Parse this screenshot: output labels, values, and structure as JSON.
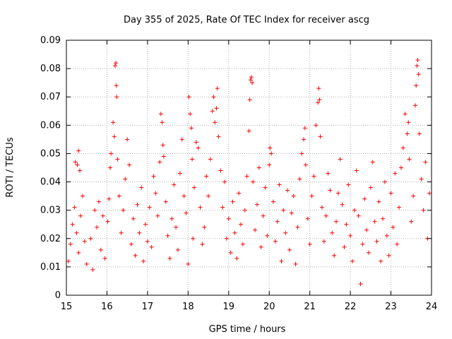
{
  "chart_data": {
    "type": "scatter",
    "title": "Day 355 of 2025, Rate Of TEC Index for receiver ascg",
    "xlabel": "GPS time / hours",
    "ylabel": "ROTI / TECUs",
    "xlim": [
      15,
      24
    ],
    "ylim": [
      0,
      0.09
    ],
    "x_ticks": [
      15,
      16,
      17,
      18,
      19,
      20,
      21,
      22,
      23,
      24
    ],
    "x_tick_labels": [
      "15",
      "16",
      "17",
      "18",
      "19",
      "20",
      "21",
      "22",
      "23",
      "24"
    ],
    "y_ticks": [
      0,
      0.01,
      0.02,
      0.03,
      0.04,
      0.05,
      0.06,
      0.07,
      0.08,
      0.09
    ],
    "y_tick_labels": [
      "0",
      "0.01",
      "0.02",
      "0.03",
      "0.04",
      "0.05",
      "0.06",
      "0.07",
      "0.08",
      "0.09"
    ],
    "grid": true,
    "marker": "+",
    "series_color": "#ff0000",
    "series": [
      {
        "name": "ROTI",
        "points": [
          [
            15.05,
            0.012
          ],
          [
            15.1,
            0.018
          ],
          [
            15.15,
            0.025
          ],
          [
            15.2,
            0.031
          ],
          [
            15.25,
            0.022
          ],
          [
            15.3,
            0.015
          ],
          [
            15.35,
            0.028
          ],
          [
            15.4,
            0.035
          ],
          [
            15.45,
            0.019
          ],
          [
            15.5,
            0.011
          ],
          [
            15.22,
            0.047
          ],
          [
            15.27,
            0.046
          ],
          [
            15.3,
            0.051
          ],
          [
            15.33,
            0.044
          ],
          [
            15.6,
            0.02
          ],
          [
            15.65,
            0.009
          ],
          [
            15.7,
            0.03
          ],
          [
            15.75,
            0.024
          ],
          [
            15.8,
            0.033
          ],
          [
            15.85,
            0.016
          ],
          [
            15.9,
            0.028
          ],
          [
            15.95,
            0.013
          ],
          [
            16.02,
            0.026
          ],
          [
            16.05,
            0.034
          ],
          [
            16.08,
            0.045
          ],
          [
            16.1,
            0.05
          ],
          [
            16.15,
            0.061
          ],
          [
            16.18,
            0.056
          ],
          [
            16.2,
            0.081
          ],
          [
            16.22,
            0.082
          ],
          [
            16.23,
            0.074
          ],
          [
            16.24,
            0.07
          ],
          [
            16.26,
            0.048
          ],
          [
            16.3,
            0.035
          ],
          [
            16.35,
            0.022
          ],
          [
            16.4,
            0.03
          ],
          [
            16.45,
            0.041
          ],
          [
            16.5,
            0.055
          ],
          [
            16.55,
            0.046
          ],
          [
            16.6,
            0.018
          ],
          [
            16.65,
            0.027
          ],
          [
            16.7,
            0.014
          ],
          [
            16.75,
            0.032
          ],
          [
            16.8,
            0.022
          ],
          [
            16.85,
            0.038
          ],
          [
            16.9,
            0.012
          ],
          [
            16.95,
            0.025
          ],
          [
            17.0,
            0.019
          ],
          [
            17.05,
            0.031
          ],
          [
            17.1,
            0.017
          ],
          [
            17.15,
            0.042
          ],
          [
            17.2,
            0.036
          ],
          [
            17.25,
            0.028
          ],
          [
            17.3,
            0.047
          ],
          [
            17.33,
            0.064
          ],
          [
            17.36,
            0.061
          ],
          [
            17.38,
            0.053
          ],
          [
            17.4,
            0.049
          ],
          [
            17.45,
            0.033
          ],
          [
            17.5,
            0.021
          ],
          [
            17.55,
            0.013
          ],
          [
            17.6,
            0.027
          ],
          [
            17.65,
            0.039
          ],
          [
            17.7,
            0.024
          ],
          [
            17.75,
            0.016
          ],
          [
            17.8,
            0.043
          ],
          [
            17.85,
            0.055
          ],
          [
            17.9,
            0.035
          ],
          [
            17.95,
            0.029
          ],
          [
            18.0,
            0.011
          ],
          [
            18.02,
            0.07
          ],
          [
            18.05,
            0.064
          ],
          [
            18.08,
            0.059
          ],
          [
            18.1,
            0.048
          ],
          [
            18.12,
            0.02
          ],
          [
            18.15,
            0.038
          ],
          [
            18.2,
            0.054
          ],
          [
            18.25,
            0.052
          ],
          [
            18.3,
            0.031
          ],
          [
            18.35,
            0.018
          ],
          [
            18.4,
            0.024
          ],
          [
            18.45,
            0.042
          ],
          [
            18.5,
            0.035
          ],
          [
            18.55,
            0.048
          ],
          [
            18.6,
            0.065
          ],
          [
            18.63,
            0.07
          ],
          [
            18.66,
            0.061
          ],
          [
            18.7,
            0.066
          ],
          [
            18.72,
            0.073
          ],
          [
            18.75,
            0.056
          ],
          [
            18.8,
            0.044
          ],
          [
            18.85,
            0.031
          ],
          [
            18.9,
            0.04
          ],
          [
            18.95,
            0.02
          ],
          [
            19.0,
            0.027
          ],
          [
            19.05,
            0.015
          ],
          [
            19.1,
            0.033
          ],
          [
            19.15,
            0.022
          ],
          [
            19.2,
            0.013
          ],
          [
            19.25,
            0.036
          ],
          [
            19.3,
            0.025
          ],
          [
            19.35,
            0.018
          ],
          [
            19.4,
            0.03
          ],
          [
            19.45,
            0.042
          ],
          [
            19.5,
            0.058
          ],
          [
            19.52,
            0.069
          ],
          [
            19.54,
            0.076
          ],
          [
            19.56,
            0.077
          ],
          [
            19.58,
            0.075
          ],
          [
            19.6,
            0.04
          ],
          [
            19.65,
            0.023
          ],
          [
            19.7,
            0.032
          ],
          [
            19.75,
            0.045
          ],
          [
            19.8,
            0.017
          ],
          [
            19.85,
            0.028
          ],
          [
            19.9,
            0.038
          ],
          [
            19.95,
            0.021
          ],
          [
            20.0,
            0.046
          ],
          [
            20.02,
            0.052
          ],
          [
            20.05,
            0.05
          ],
          [
            20.1,
            0.033
          ],
          [
            20.15,
            0.019
          ],
          [
            20.2,
            0.026
          ],
          [
            20.25,
            0.039
          ],
          [
            20.3,
            0.012
          ],
          [
            20.35,
            0.03
          ],
          [
            20.4,
            0.022
          ],
          [
            20.45,
            0.037
          ],
          [
            20.5,
            0.016
          ],
          [
            20.55,
            0.029
          ],
          [
            20.6,
            0.035
          ],
          [
            20.65,
            0.011
          ],
          [
            20.7,
            0.024
          ],
          [
            20.75,
            0.041
          ],
          [
            20.8,
            0.05
          ],
          [
            20.85,
            0.055
          ],
          [
            20.88,
            0.059
          ],
          [
            20.9,
            0.046
          ],
          [
            20.95,
            0.027
          ],
          [
            21.0,
            0.018
          ],
          [
            21.05,
            0.035
          ],
          [
            21.1,
            0.042
          ],
          [
            21.15,
            0.06
          ],
          [
            21.2,
            0.068
          ],
          [
            21.22,
            0.073
          ],
          [
            21.24,
            0.069
          ],
          [
            21.26,
            0.056
          ],
          [
            21.3,
            0.031
          ],
          [
            21.35,
            0.019
          ],
          [
            21.4,
            0.028
          ],
          [
            21.45,
            0.043
          ],
          [
            21.5,
            0.037
          ],
          [
            21.55,
            0.022
          ],
          [
            21.6,
            0.014
          ],
          [
            21.65,
            0.026
          ],
          [
            21.7,
            0.036
          ],
          [
            21.75,
            0.048
          ],
          [
            21.8,
            0.032
          ],
          [
            21.85,
            0.017
          ],
          [
            21.9,
            0.025
          ],
          [
            21.95,
            0.039
          ],
          [
            22.0,
            0.021
          ],
          [
            22.05,
            0.012
          ],
          [
            22.1,
            0.03
          ],
          [
            22.15,
            0.044
          ],
          [
            22.2,
            0.028
          ],
          [
            22.25,
            0.004
          ],
          [
            22.3,
            0.018
          ],
          [
            22.35,
            0.034
          ],
          [
            22.4,
            0.023
          ],
          [
            22.45,
            0.015
          ],
          [
            22.5,
            0.038
          ],
          [
            22.55,
            0.047
          ],
          [
            22.6,
            0.026
          ],
          [
            22.65,
            0.019
          ],
          [
            22.7,
            0.033
          ],
          [
            22.75,
            0.012
          ],
          [
            22.8,
            0.027
          ],
          [
            22.85,
            0.04
          ],
          [
            22.9,
            0.021
          ],
          [
            22.95,
            0.014
          ],
          [
            23.0,
            0.036
          ],
          [
            23.05,
            0.024
          ],
          [
            23.1,
            0.043
          ],
          [
            23.15,
            0.018
          ],
          [
            23.2,
            0.031
          ],
          [
            23.25,
            0.045
          ],
          [
            23.3,
            0.052
          ],
          [
            23.35,
            0.064
          ],
          [
            23.4,
            0.057
          ],
          [
            23.43,
            0.061
          ],
          [
            23.45,
            0.048
          ],
          [
            23.5,
            0.026
          ],
          [
            23.55,
            0.035
          ],
          [
            23.6,
            0.067
          ],
          [
            23.62,
            0.074
          ],
          [
            23.64,
            0.081
          ],
          [
            23.66,
            0.083
          ],
          [
            23.68,
            0.078
          ],
          [
            23.7,
            0.057
          ],
          [
            23.75,
            0.041
          ],
          [
            23.8,
            0.03
          ],
          [
            23.85,
            0.047
          ],
          [
            23.9,
            0.02
          ],
          [
            23.95,
            0.036
          ]
        ]
      }
    ]
  }
}
